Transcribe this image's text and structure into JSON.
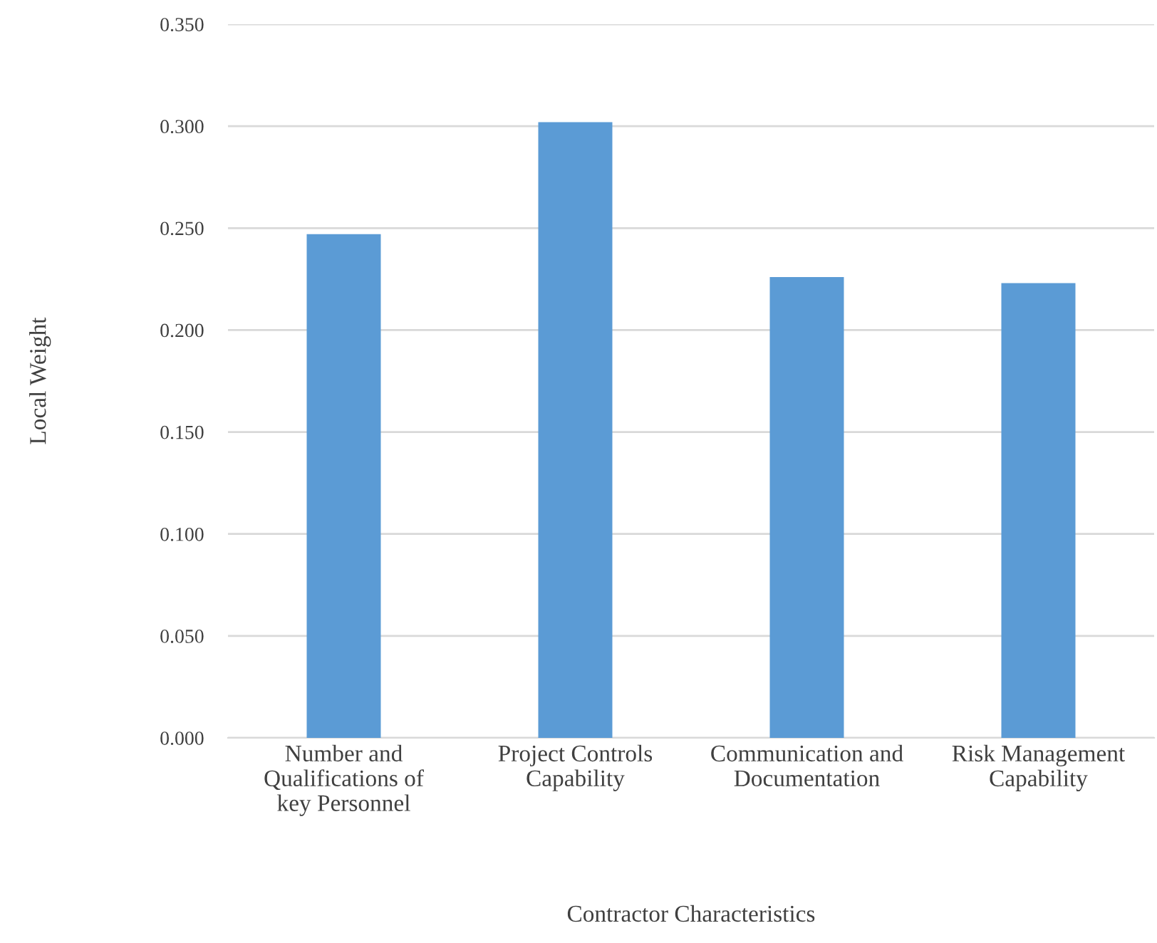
{
  "chart_data": {
    "type": "bar",
    "xlabel": "Contractor Characteristics",
    "ylabel": "Local Weight",
    "categories": [
      "Number and\nQualifications of\nkey Personnel",
      "Project Controls\nCapability",
      "Communication and\nDocumentation",
      "Risk Management\nCapability"
    ],
    "values": [
      0.247,
      0.302,
      0.226,
      0.223
    ],
    "color": "#5b9bd5",
    "ylim": [
      0,
      0.35
    ],
    "yticks": [
      {
        "value": 0,
        "label": "0.000"
      },
      {
        "value": 0.05,
        "label": "0.050"
      },
      {
        "value": 0.1,
        "label": "0.100"
      },
      {
        "value": 0.15,
        "label": "0.150"
      },
      {
        "value": 0.2,
        "label": "0.200"
      },
      {
        "value": 0.25,
        "label": "0.250"
      },
      {
        "value": 0.3,
        "label": "0.300"
      },
      {
        "value": 0.35,
        "label": "0.350"
      }
    ],
    "grid": "y"
  }
}
